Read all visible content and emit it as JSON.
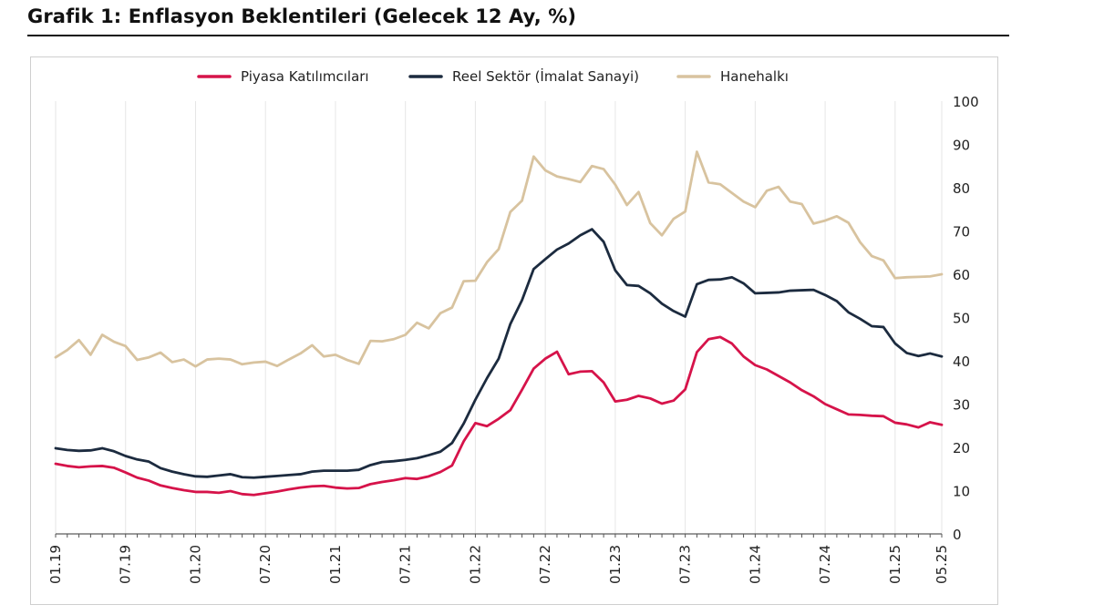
{
  "title": "Grafik 1: Enflasyon Beklentileri (Gelecek 12 Ay, %)",
  "chart_data": {
    "type": "line",
    "title": "Grafik 1: Enflasyon Beklentileri (Gelecek 12 Ay, %)",
    "ylim": [
      0,
      100
    ],
    "yticks": [
      0,
      10,
      20,
      30,
      40,
      50,
      60,
      70,
      80,
      90,
      100
    ],
    "x_tick_labels": [
      "01.19",
      "07.19",
      "01.20",
      "07.20",
      "01.21",
      "07.21",
      "01.22",
      "07.22",
      "01.23",
      "07.23",
      "01.24",
      "07.24",
      "01.25",
      "05.25"
    ],
    "x_tick_month_index": [
      0,
      6,
      12,
      18,
      24,
      30,
      36,
      42,
      48,
      54,
      60,
      66,
      72,
      76
    ],
    "grid": "vertical",
    "legend_position": "top",
    "colors": {
      "piyasa": "#d6134a",
      "reel": "#1c2b3f",
      "hane": "#d8c39f"
    },
    "series": [
      {
        "name": "Piyasa Katılımcıları",
        "color": "#d6134a",
        "values": [
          16.2,
          15.7,
          15.4,
          15.6,
          15.7,
          15.3,
          14.2,
          13.0,
          12.3,
          11.2,
          10.6,
          10.1,
          9.7,
          9.7,
          9.5,
          9.9,
          9.2,
          9.0,
          9.4,
          9.8,
          10.3,
          10.7,
          11.0,
          11.1,
          10.7,
          10.5,
          10.6,
          11.5,
          12.0,
          12.4,
          12.9,
          12.7,
          13.3,
          14.3,
          15.8,
          21.4,
          25.6,
          24.9,
          26.6,
          28.6,
          33.3,
          38.2,
          40.5,
          42.1,
          36.9,
          37.5,
          37.6,
          35.0,
          30.6,
          31.0,
          31.9,
          31.3,
          30.1,
          30.8,
          33.4,
          42.0,
          45.0,
          45.5,
          44.0,
          41.0,
          39.0,
          38.0,
          36.5,
          35.0,
          33.2,
          31.8,
          30.0,
          28.8,
          27.6,
          27.5,
          27.3,
          27.2,
          25.7,
          25.3,
          24.6,
          25.8,
          25.2
        ]
      },
      {
        "name": "Reel Sektör (İmalat Sanayi)",
        "color": "#1c2b3f",
        "values": [
          19.8,
          19.4,
          19.2,
          19.3,
          19.8,
          19.1,
          18.0,
          17.2,
          16.7,
          15.2,
          14.4,
          13.8,
          13.3,
          13.2,
          13.5,
          13.8,
          13.1,
          13.0,
          13.2,
          13.4,
          13.6,
          13.8,
          14.4,
          14.6,
          14.6,
          14.6,
          14.8,
          15.9,
          16.6,
          16.8,
          17.1,
          17.5,
          18.2,
          19.0,
          21.0,
          25.5,
          31.0,
          36.0,
          40.5,
          48.5,
          54.0,
          61.2,
          63.5,
          65.7,
          67.1,
          69.0,
          70.4,
          67.5,
          60.9,
          57.5,
          57.3,
          55.6,
          53.2,
          51.5,
          50.2,
          57.7,
          58.7,
          58.8,
          59.3,
          57.9,
          55.6,
          55.7,
          55.8,
          56.2,
          56.3,
          56.4,
          55.2,
          53.8,
          51.2,
          49.7,
          48.0,
          47.8,
          44.0,
          41.8,
          41.1,
          41.7,
          41.0
        ]
      },
      {
        "name": "Hanehalkı",
        "color": "#d8c39f",
        "values": [
          40.8,
          42.5,
          44.8,
          41.4,
          46.0,
          44.4,
          43.4,
          40.2,
          40.8,
          41.9,
          39.7,
          40.3,
          38.7,
          40.3,
          40.5,
          40.3,
          39.2,
          39.6,
          39.8,
          38.8,
          40.3,
          41.7,
          43.6,
          41.0,
          41.4,
          40.2,
          39.3,
          44.6,
          44.5,
          45.0,
          46.0,
          48.8,
          47.5,
          51.0,
          52.3,
          58.4,
          58.5,
          62.8,
          65.8,
          74.4,
          77.0,
          87.2,
          84.0,
          82.6,
          82.0,
          81.3,
          85.0,
          84.3,
          80.7,
          76.0,
          79.0,
          71.8,
          69.0,
          72.8,
          74.5,
          88.3,
          81.2,
          80.8,
          78.8,
          76.8,
          75.5,
          79.3,
          80.2,
          76.8,
          76.2,
          71.7,
          72.4,
          73.4,
          71.9,
          67.4,
          64.2,
          63.2,
          59.1,
          59.3,
          59.4,
          59.5,
          60.0
        ]
      }
    ]
  }
}
